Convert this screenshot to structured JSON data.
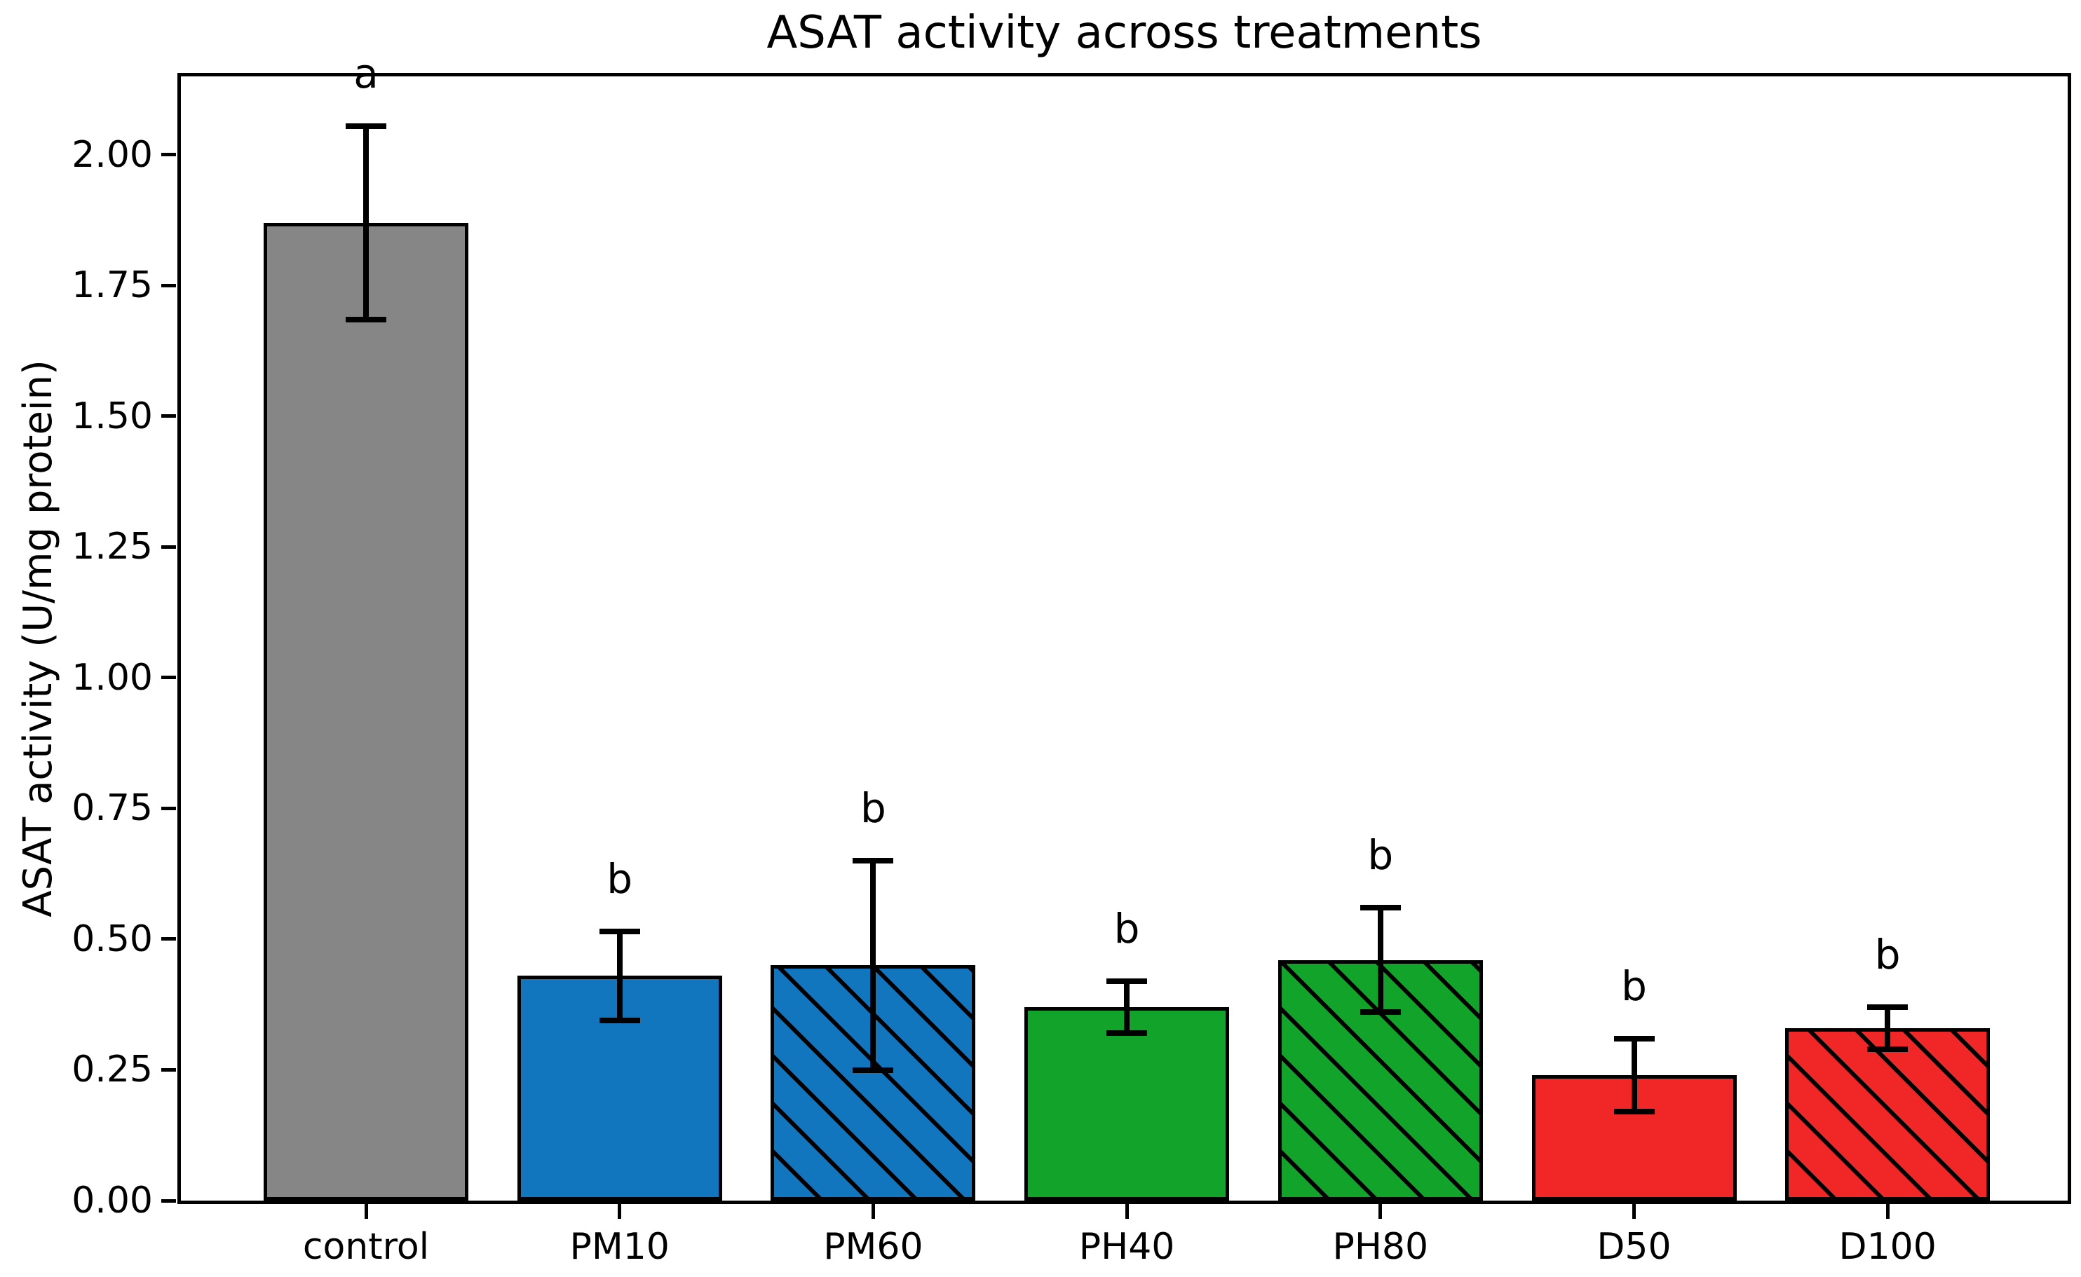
{
  "chart_data": {
    "type": "bar",
    "title": "ASAT activity across treatments",
    "ylabel": "ASAT activity (U/mg protein)",
    "xlabel": "",
    "categories": [
      "control",
      "PM10",
      "PM60",
      "PH40",
      "PH80",
      "D50",
      "D100"
    ],
    "values": [
      1.87,
      0.43,
      0.45,
      0.37,
      0.46,
      0.24,
      0.33
    ],
    "errors": [
      0.185,
      0.085,
      0.2,
      0.05,
      0.1,
      0.07,
      0.04
    ],
    "sig_letters": [
      "a",
      "b",
      "b",
      "b",
      "b",
      "b",
      "b"
    ],
    "bar_colors": [
      "#868686",
      "#1176bd",
      "#1176bd",
      "#12a32b",
      "#12a32b",
      "#f12626",
      "#f12626"
    ],
    "hatched": [
      false,
      false,
      true,
      false,
      true,
      false,
      true
    ],
    "edge_color": "#000000",
    "error_color": "#000000",
    "ylim": [
      0,
      2.15
    ],
    "yticks": [
      "0.00",
      "0.25",
      "0.50",
      "0.75",
      "1.00",
      "1.25",
      "1.50",
      "1.75",
      "2.00"
    ],
    "grid": false,
    "legend": "none",
    "frame": "full-box"
  }
}
